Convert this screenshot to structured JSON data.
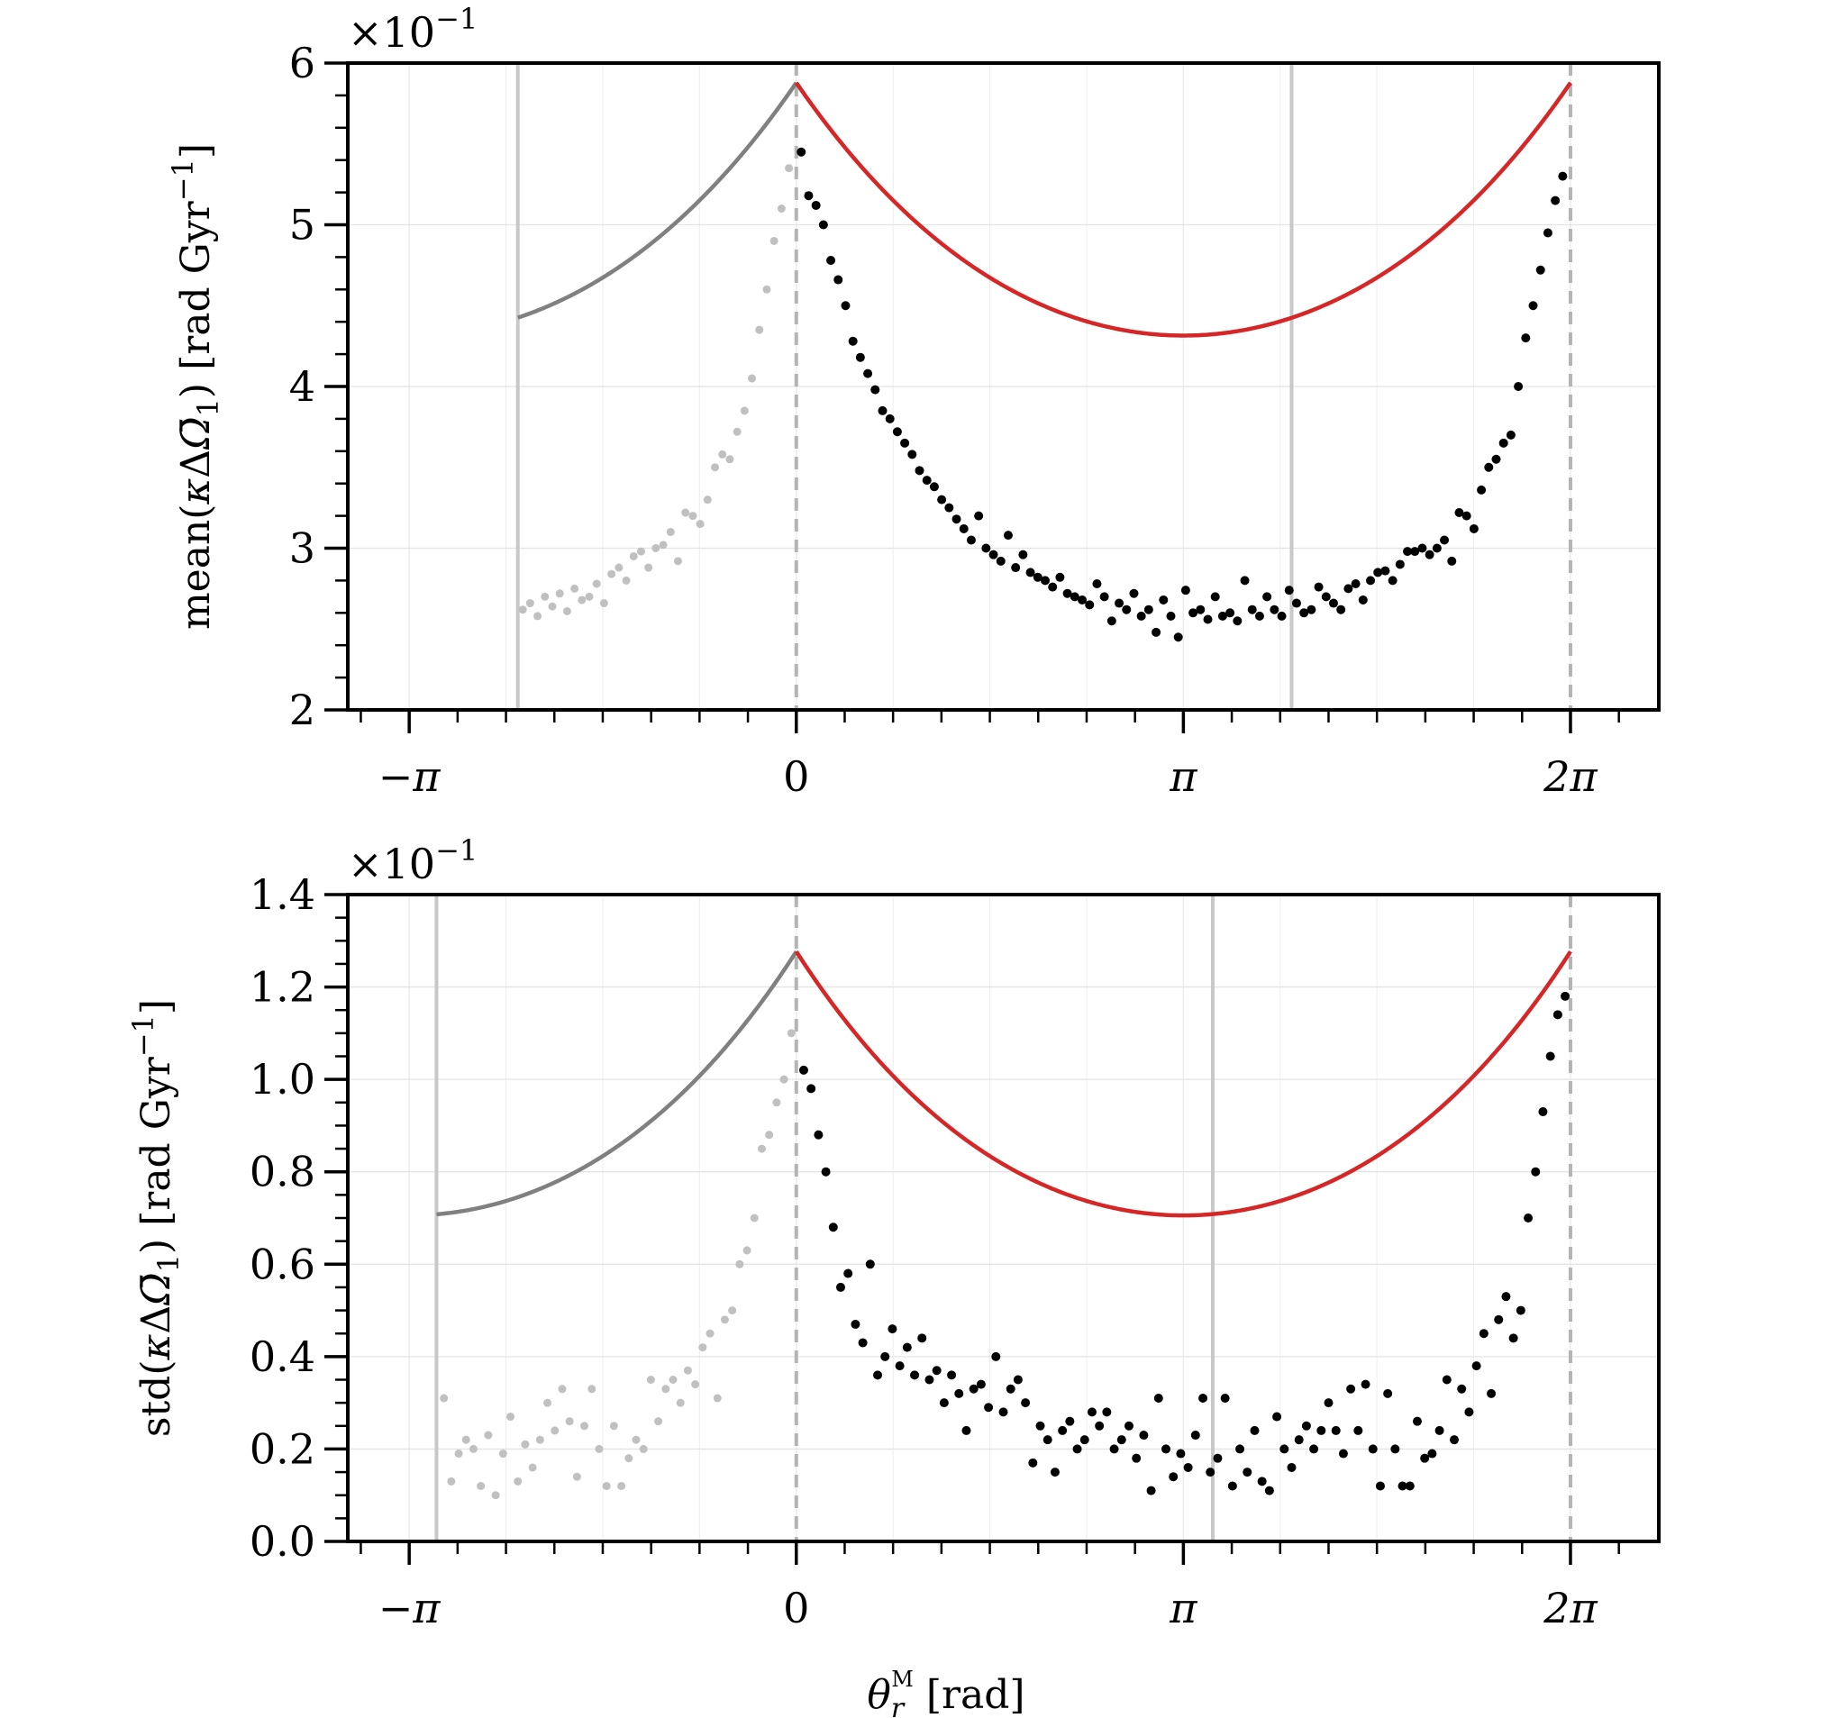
{
  "figure": {
    "x_axis_label": "θ_r^M [rad]",
    "x_axis_label_parts": {
      "symbol": "θ",
      "subscript": "r",
      "superscript": "M",
      "unit": "[rad]"
    }
  },
  "chart_data": [
    {
      "type": "scatter",
      "name": "top-panel-mean",
      "ylabel": "mean(κΔΩ̄₁) [rad Gyr⁻¹]",
      "ylabel_parts": {
        "prefix": "mean(",
        "kappa": "κ",
        "delta": "Δ",
        "omega": "Ω̄",
        "sub": "1",
        "close": ")",
        "unit_open": "[rad Gyr",
        "unit_exp": "−1",
        "unit_close": "]"
      },
      "multiplier": "×10",
      "multiplier_exp": "−1",
      "xlim": [
        -3.64,
        7.0
      ],
      "ylim": [
        2,
        6
      ],
      "yticks": [
        2,
        3,
        4,
        5,
        6
      ],
      "ytick_labels": [
        "2",
        "3",
        "4",
        "5",
        "6"
      ],
      "minor_ytick_step": 0.2,
      "xticks": [
        -3.14159,
        0,
        3.14159,
        6.28319
      ],
      "xtick_labels": [
        "−π",
        "0",
        "π",
        "2π"
      ],
      "minor_xtick_step": 0.3927,
      "grid": true,
      "dashed_vlines": [
        0,
        6.28319
      ],
      "solid_vlines": [
        -2.26,
        4.02
      ],
      "fit_grey": {
        "color": "#808080",
        "x_range": [
          -2.26,
          0
        ]
      },
      "fit_red": {
        "color": "#d62728",
        "x_range": [
          0,
          6.28319
        ]
      },
      "fit_params": {
        "base": 2.65,
        "peak": 5.58,
        "a": 0.42
      },
      "grey_points": {
        "color": "#c0c0c0",
        "x": [
          -2.22,
          -2.16,
          -2.1,
          -2.04,
          -1.98,
          -1.92,
          -1.86,
          -1.8,
          -1.74,
          -1.68,
          -1.62,
          -1.56,
          -1.5,
          -1.44,
          -1.38,
          -1.32,
          -1.26,
          -1.2,
          -1.14,
          -1.08,
          -1.02,
          -0.96,
          -0.9,
          -0.84,
          -0.78,
          -0.72,
          -0.66,
          -0.6,
          -0.54,
          -0.48,
          -0.42,
          -0.36,
          -0.3,
          -0.24,
          -0.18,
          -0.12,
          -0.06
        ],
        "y": [
          2.62,
          2.66,
          2.58,
          2.7,
          2.64,
          2.72,
          2.61,
          2.75,
          2.68,
          2.7,
          2.78,
          2.66,
          2.84,
          2.88,
          2.8,
          2.95,
          2.98,
          2.88,
          3.0,
          3.02,
          3.1,
          2.92,
          3.22,
          3.2,
          3.15,
          3.3,
          3.5,
          3.58,
          3.55,
          3.72,
          3.85,
          4.05,
          4.35,
          4.6,
          4.9,
          5.1,
          5.35
        ]
      },
      "black_points": {
        "color": "#000000",
        "x": [
          0.04,
          0.1,
          0.16,
          0.22,
          0.28,
          0.34,
          0.4,
          0.46,
          0.52,
          0.58,
          0.64,
          0.7,
          0.76,
          0.82,
          0.88,
          0.94,
          1.0,
          1.06,
          1.12,
          1.18,
          1.24,
          1.3,
          1.36,
          1.42,
          1.48,
          1.54,
          1.6,
          1.66,
          1.72,
          1.78,
          1.84,
          1.9,
          1.96,
          2.02,
          2.08,
          2.14,
          2.2,
          2.26,
          2.32,
          2.38,
          2.44,
          2.5,
          2.56,
          2.62,
          2.68,
          2.74,
          2.8,
          2.86,
          2.92,
          2.98,
          3.04,
          3.1,
          3.16,
          3.22,
          3.28,
          3.34,
          3.4,
          3.46,
          3.52,
          3.58,
          3.64,
          3.7,
          3.76,
          3.82,
          3.88,
          3.94,
          4.0,
          4.06,
          4.12,
          4.18,
          4.24,
          4.3,
          4.36,
          4.42,
          4.48,
          4.54,
          4.6,
          4.66,
          4.72,
          4.78,
          4.84,
          4.9,
          4.96,
          5.02,
          5.08,
          5.14,
          5.2,
          5.26,
          5.32,
          5.38,
          5.44,
          5.5,
          5.56,
          5.62,
          5.68,
          5.74,
          5.8,
          5.86,
          5.92,
          5.98,
          6.04,
          6.1,
          6.16,
          6.22
        ],
        "y": [
          5.45,
          5.18,
          5.12,
          5.0,
          4.78,
          4.66,
          4.5,
          4.28,
          4.18,
          4.08,
          3.98,
          3.85,
          3.8,
          3.72,
          3.65,
          3.58,
          3.48,
          3.42,
          3.38,
          3.3,
          3.25,
          3.18,
          3.12,
          3.05,
          3.2,
          3.0,
          2.96,
          2.92,
          3.08,
          2.88,
          2.96,
          2.85,
          2.82,
          2.8,
          2.76,
          2.82,
          2.72,
          2.7,
          2.68,
          2.65,
          2.78,
          2.7,
          2.55,
          2.66,
          2.62,
          2.72,
          2.58,
          2.62,
          2.48,
          2.68,
          2.58,
          2.45,
          2.74,
          2.6,
          2.62,
          2.56,
          2.7,
          2.58,
          2.6,
          2.55,
          2.8,
          2.62,
          2.58,
          2.7,
          2.62,
          2.58,
          2.74,
          2.66,
          2.6,
          2.62,
          2.76,
          2.7,
          2.66,
          2.62,
          2.75,
          2.78,
          2.68,
          2.8,
          2.85,
          2.86,
          2.8,
          2.9,
          2.98,
          2.98,
          3.0,
          2.96,
          3.0,
          3.05,
          2.92,
          3.22,
          3.2,
          3.12,
          3.36,
          3.5,
          3.55,
          3.65,
          3.7,
          4.0,
          4.3,
          4.5,
          4.72,
          4.95,
          5.15,
          5.3
        ]
      }
    },
    {
      "type": "scatter",
      "name": "bottom-panel-std",
      "ylabel": "std(κΔΩ̄₁) [rad Gyr⁻¹]",
      "ylabel_parts": {
        "prefix": "std(",
        "kappa": "κ",
        "delta": "Δ",
        "omega": "Ω̄",
        "sub": "1",
        "close": ")",
        "unit_open": "[rad Gyr",
        "unit_exp": "−1",
        "unit_close": "]"
      },
      "multiplier": "×10",
      "multiplier_exp": "−1",
      "xlim": [
        -3.64,
        7.0
      ],
      "ylim": [
        0,
        1.4
      ],
      "yticks": [
        0.0,
        0.2,
        0.4,
        0.6,
        0.8,
        1.0,
        1.2,
        1.4
      ],
      "ytick_labels": [
        "0.0",
        "0.2",
        "0.4",
        "0.6",
        "0.8",
        "1.0",
        "1.2",
        "1.4"
      ],
      "minor_ytick_step": 0.05,
      "xticks": [
        -3.14159,
        0,
        3.14159,
        6.28319
      ],
      "xtick_labels": [
        "−π",
        "0",
        "π",
        "2π"
      ],
      "minor_xtick_step": 0.3927,
      "grid": true,
      "dashed_vlines": [
        0,
        6.28319
      ],
      "solid_vlines": [
        -2.92,
        3.38
      ],
      "fit_grey": {
        "color": "#808080",
        "x_range": [
          -2.92,
          0
        ]
      },
      "fit_red": {
        "color": "#d62728",
        "x_range": [
          0,
          6.28319
        ]
      },
      "fit_params": {
        "base": 0.21,
        "peak": 1.2,
        "a": 0.38
      },
      "grey_points": {
        "color": "#c0c0c0",
        "x": [
          -2.86,
          -2.8,
          -2.74,
          -2.68,
          -2.62,
          -2.56,
          -2.5,
          -2.44,
          -2.38,
          -2.32,
          -2.26,
          -2.2,
          -2.14,
          -2.08,
          -2.02,
          -1.96,
          -1.9,
          -1.84,
          -1.78,
          -1.72,
          -1.66,
          -1.6,
          -1.54,
          -1.48,
          -1.42,
          -1.36,
          -1.3,
          -1.24,
          -1.18,
          -1.12,
          -1.06,
          -1.0,
          -0.94,
          -0.88,
          -0.82,
          -0.76,
          -0.7,
          -0.64,
          -0.58,
          -0.52,
          -0.46,
          -0.4,
          -0.34,
          -0.28,
          -0.22,
          -0.16,
          -0.1,
          -0.04
        ],
        "y": [
          0.31,
          0.13,
          0.19,
          0.22,
          0.2,
          0.12,
          0.23,
          0.1,
          0.19,
          0.27,
          0.13,
          0.21,
          0.16,
          0.22,
          0.3,
          0.24,
          0.33,
          0.26,
          0.14,
          0.25,
          0.33,
          0.2,
          0.12,
          0.25,
          0.12,
          0.18,
          0.22,
          0.2,
          0.35,
          0.26,
          0.33,
          0.35,
          0.3,
          0.37,
          0.34,
          0.42,
          0.45,
          0.31,
          0.48,
          0.5,
          0.6,
          0.63,
          0.7,
          0.85,
          0.88,
          0.95,
          1.0,
          1.1
        ]
      },
      "black_points": {
        "color": "#000000",
        "x": [
          0.06,
          0.12,
          0.18,
          0.24,
          0.3,
          0.36,
          0.42,
          0.48,
          0.54,
          0.6,
          0.66,
          0.72,
          0.78,
          0.84,
          0.9,
          0.96,
          1.02,
          1.08,
          1.14,
          1.2,
          1.26,
          1.32,
          1.38,
          1.44,
          1.5,
          1.56,
          1.62,
          1.68,
          1.74,
          1.8,
          1.86,
          1.92,
          1.98,
          2.04,
          2.1,
          2.16,
          2.22,
          2.28,
          2.34,
          2.4,
          2.46,
          2.52,
          2.58,
          2.64,
          2.7,
          2.76,
          2.82,
          2.88,
          2.94,
          3.0,
          3.06,
          3.12,
          3.18,
          3.24,
          3.3,
          3.36,
          3.42,
          3.48,
          3.54,
          3.6,
          3.66,
          3.72,
          3.78,
          3.84,
          3.9,
          3.96,
          4.02,
          4.08,
          4.14,
          4.2,
          4.26,
          4.32,
          4.38,
          4.44,
          4.5,
          4.56,
          4.62,
          4.68,
          4.74,
          4.8,
          4.86,
          4.92,
          4.98,
          5.04,
          5.1,
          5.16,
          5.22,
          5.28,
          5.34,
          5.4,
          5.46,
          5.52,
          5.58,
          5.64,
          5.7,
          5.76,
          5.82,
          5.88,
          5.94,
          6.0,
          6.06,
          6.12,
          6.18,
          6.24
        ],
        "y": [
          1.02,
          0.98,
          0.88,
          0.8,
          0.68,
          0.55,
          0.58,
          0.47,
          0.43,
          0.6,
          0.36,
          0.4,
          0.46,
          0.38,
          0.42,
          0.36,
          0.44,
          0.35,
          0.37,
          0.3,
          0.36,
          0.32,
          0.24,
          0.33,
          0.34,
          0.29,
          0.4,
          0.28,
          0.33,
          0.35,
          0.3,
          0.17,
          0.25,
          0.22,
          0.15,
          0.24,
          0.26,
          0.2,
          0.22,
          0.28,
          0.25,
          0.28,
          0.2,
          0.22,
          0.25,
          0.18,
          0.23,
          0.11,
          0.31,
          0.2,
          0.14,
          0.19,
          0.16,
          0.23,
          0.31,
          0.15,
          0.18,
          0.31,
          0.12,
          0.2,
          0.15,
          0.24,
          0.13,
          0.11,
          0.27,
          0.2,
          0.16,
          0.22,
          0.25,
          0.2,
          0.24,
          0.3,
          0.24,
          0.19,
          0.33,
          0.24,
          0.34,
          0.2,
          0.12,
          0.32,
          0.2,
          0.12,
          0.12,
          0.26,
          0.18,
          0.19,
          0.24,
          0.35,
          0.22,
          0.33,
          0.28,
          0.38,
          0.45,
          0.32,
          0.48,
          0.53,
          0.44,
          0.5,
          0.7,
          0.8,
          0.93,
          1.05,
          1.14,
          1.18
        ]
      }
    }
  ]
}
